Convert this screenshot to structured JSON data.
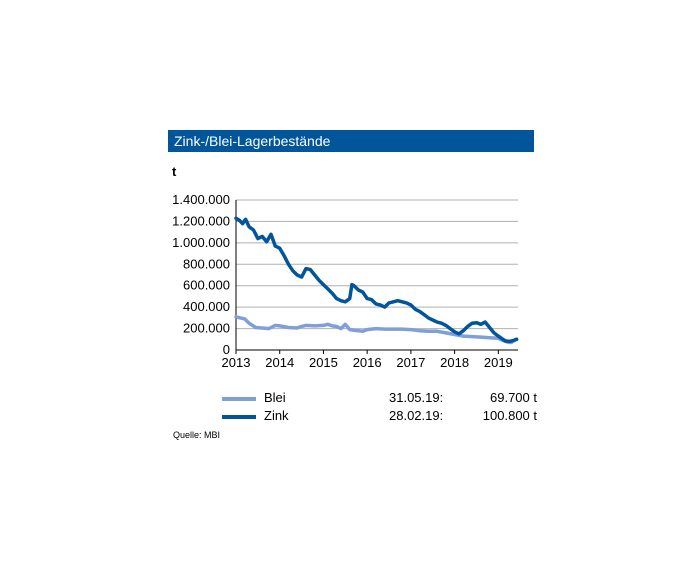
{
  "header": {
    "title": "Zink-/Blei-Lagerbestände"
  },
  "chart_data": {
    "type": "line",
    "unit_label": "t",
    "title": "Zink-/Blei-Lagerbestände",
    "x_ticks": [
      "2013",
      "2014",
      "2015",
      "2016",
      "2017",
      "2018",
      "2019"
    ],
    "y_ticks": [
      "0",
      "200.000",
      "400.000",
      "600.000",
      "800.000",
      "1.000.000",
      "1.200.000",
      "1.400.000"
    ],
    "ylim": [
      0,
      1400000
    ],
    "xlim": [
      2013.0,
      2019.45
    ],
    "grid": true,
    "legend_position": "bottom",
    "series": [
      {
        "name": "Blei",
        "color": "#7e9fd8",
        "x": [
          2013.0,
          2013.1,
          2013.2,
          2013.3,
          2013.45,
          2013.6,
          2013.75,
          2013.9,
          2014.0,
          2014.2,
          2014.4,
          2014.5,
          2014.6,
          2014.8,
          2015.0,
          2015.1,
          2015.2,
          2015.3,
          2015.4,
          2015.5,
          2015.6,
          2015.7,
          2015.8,
          2015.9,
          2016.0,
          2016.2,
          2016.4,
          2016.6,
          2016.8,
          2017.0,
          2017.2,
          2017.4,
          2017.6,
          2017.8,
          2018.0,
          2018.2,
          2018.4,
          2018.6,
          2018.8,
          2019.0,
          2019.1,
          2019.2,
          2019.3,
          2019.4
        ],
        "values": [
          310000,
          300000,
          290000,
          250000,
          210000,
          205000,
          200000,
          230000,
          225000,
          210000,
          205000,
          220000,
          230000,
          225000,
          230000,
          240000,
          225000,
          220000,
          200000,
          240000,
          190000,
          185000,
          180000,
          175000,
          190000,
          200000,
          195000,
          195000,
          195000,
          190000,
          180000,
          175000,
          175000,
          160000,
          145000,
          130000,
          125000,
          120000,
          115000,
          110000,
          90000,
          75000,
          69700,
          100000
        ]
      },
      {
        "name": "Zink",
        "color": "#00559b",
        "x": [
          2013.0,
          2013.08,
          2013.15,
          2013.22,
          2013.3,
          2013.4,
          2013.5,
          2013.6,
          2013.7,
          2013.8,
          2013.9,
          2014.0,
          2014.1,
          2014.2,
          2014.3,
          2014.4,
          2014.5,
          2014.6,
          2014.7,
          2014.8,
          2014.9,
          2015.0,
          2015.1,
          2015.2,
          2015.3,
          2015.4,
          2015.5,
          2015.6,
          2015.65,
          2015.7,
          2015.8,
          2015.9,
          2016.0,
          2016.1,
          2016.2,
          2016.3,
          2016.4,
          2016.5,
          2016.6,
          2016.7,
          2016.8,
          2016.9,
          2017.0,
          2017.1,
          2017.2,
          2017.3,
          2017.4,
          2017.5,
          2017.6,
          2017.7,
          2017.8,
          2017.9,
          2018.0,
          2018.1,
          2018.2,
          2018.3,
          2018.4,
          2018.5,
          2018.6,
          2018.7,
          2018.8,
          2018.9,
          2019.0,
          2019.1,
          2019.16,
          2019.25,
          2019.35,
          2019.42
        ],
        "values": [
          1230000,
          1210000,
          1180000,
          1220000,
          1150000,
          1120000,
          1040000,
          1060000,
          1010000,
          1080000,
          970000,
          950000,
          880000,
          800000,
          740000,
          700000,
          680000,
          760000,
          750000,
          700000,
          650000,
          610000,
          570000,
          530000,
          480000,
          460000,
          450000,
          480000,
          610000,
          600000,
          560000,
          540000,
          480000,
          470000,
          430000,
          420000,
          400000,
          440000,
          450000,
          460000,
          450000,
          440000,
          420000,
          380000,
          360000,
          330000,
          300000,
          280000,
          260000,
          250000,
          230000,
          200000,
          170000,
          150000,
          180000,
          220000,
          250000,
          255000,
          240000,
          260000,
          210000,
          160000,
          130000,
          100800,
          85000,
          80000,
          90000,
          100000
        ]
      }
    ]
  },
  "legend": [
    {
      "name": "Blei",
      "date": "31.05.19:",
      "value": "69.700 t",
      "color": "#7e9fd8"
    },
    {
      "name": "Zink",
      "date": "28.02.19:",
      "value": "100.800 t",
      "color": "#00559b"
    }
  ],
  "source": "Quelle: MBI"
}
